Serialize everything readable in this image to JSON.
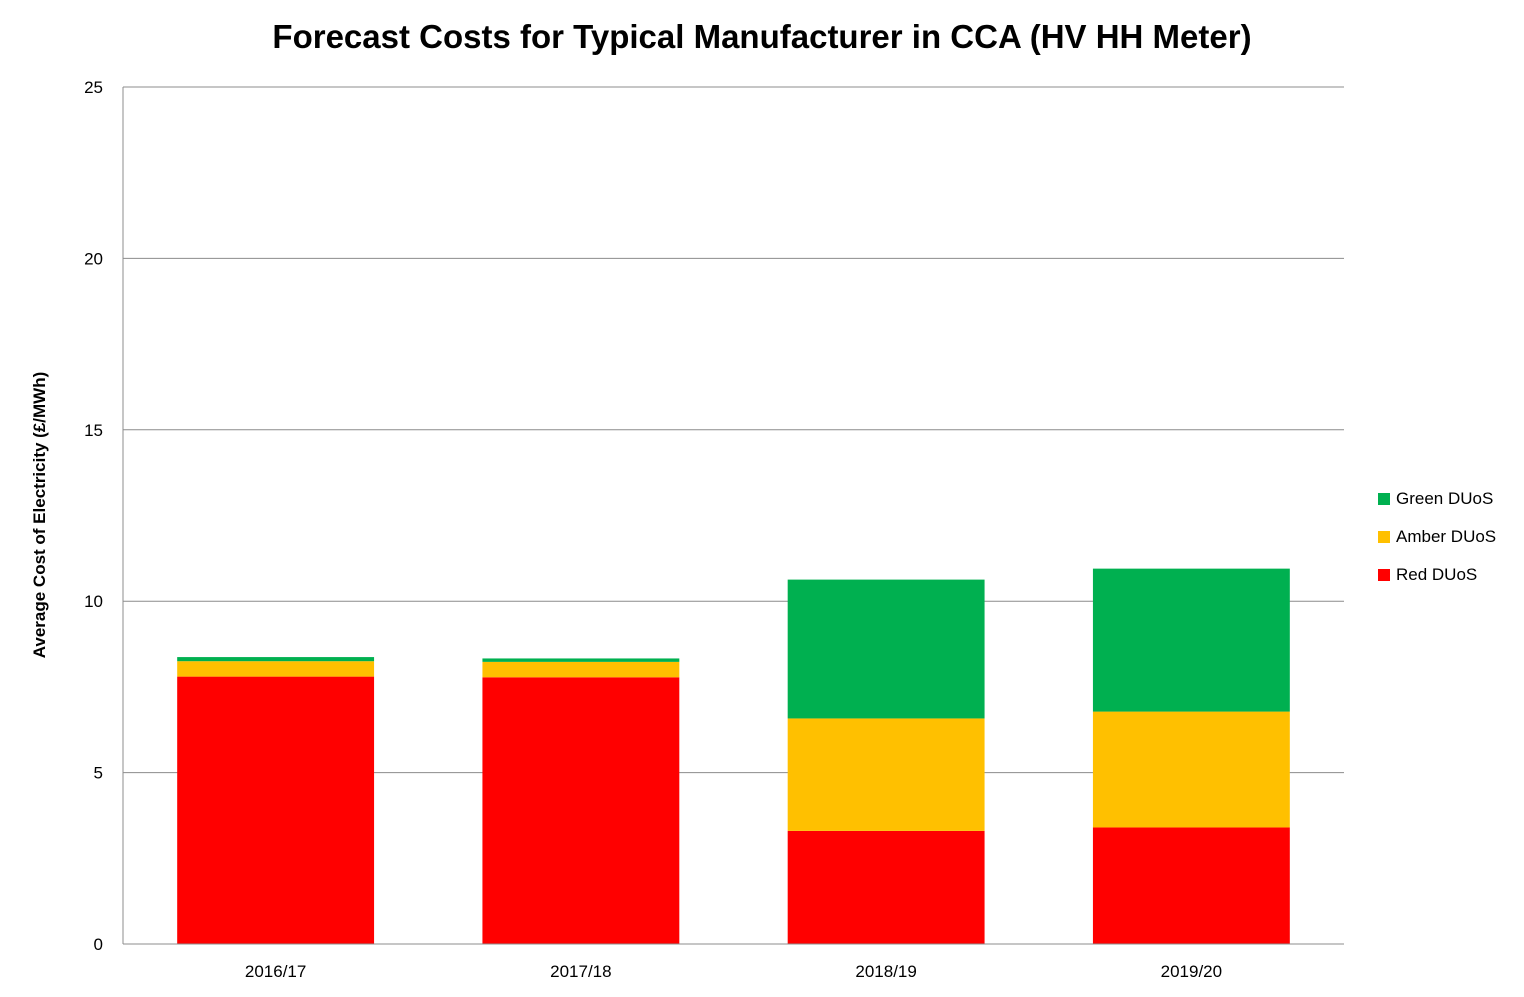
{
  "chart_data": {
    "type": "bar",
    "stacked": true,
    "title": "Forecast Costs for Typical Manufacturer in CCA (HV HH Meter)",
    "xlabel": "",
    "ylabel": "Average Cost of Electricity (£/MWh)",
    "ylim": [
      0,
      25
    ],
    "yticks": [
      "0",
      "5",
      "10",
      "15",
      "20",
      "25"
    ],
    "grid": true,
    "legend_position": "right",
    "categories": [
      "2016/17",
      "2017/18",
      "2018/19",
      "2019/20"
    ],
    "series": [
      {
        "name": "Red DUoS",
        "color": "#ff0000",
        "values": [
          7.8,
          7.78,
          3.3,
          3.4
        ]
      },
      {
        "name": "Amber DUoS",
        "color": "#ffc000",
        "values": [
          0.45,
          0.45,
          3.28,
          3.38
        ]
      },
      {
        "name": "Green DUoS",
        "color": "#00b050",
        "values": [
          0.12,
          0.1,
          4.05,
          4.17
        ]
      }
    ]
  }
}
